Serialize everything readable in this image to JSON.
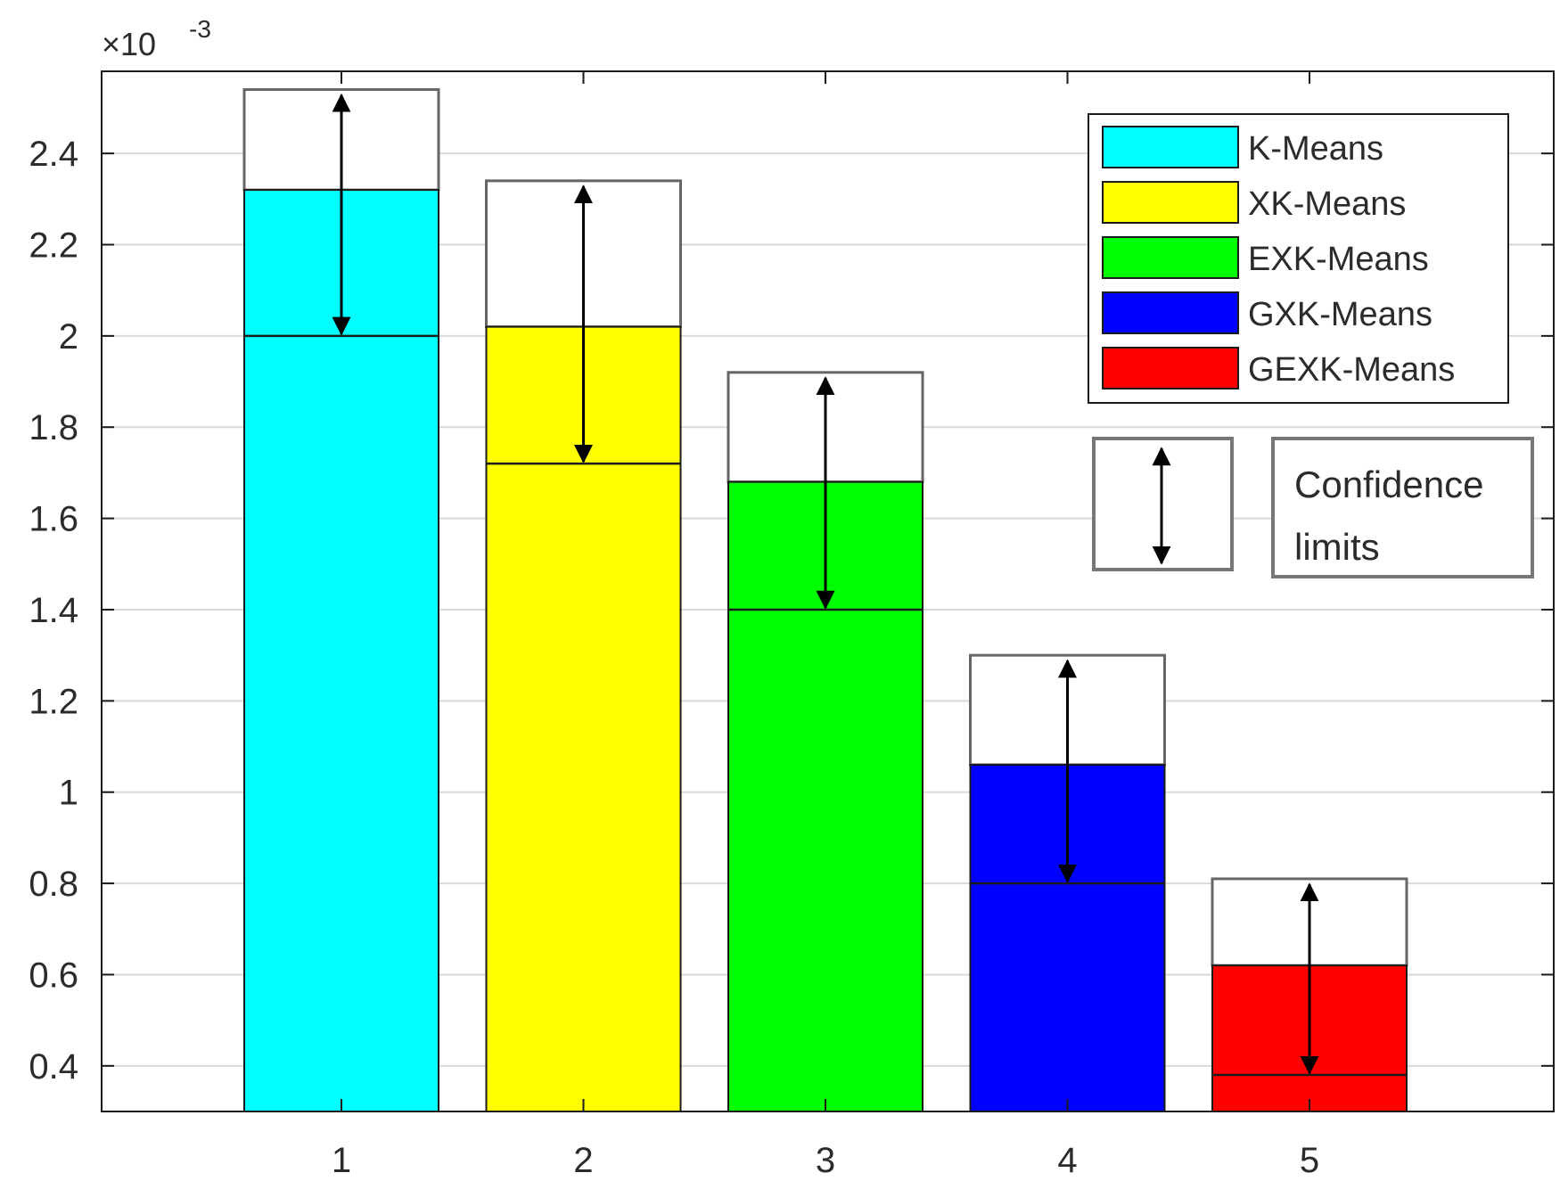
{
  "chart_data": {
    "type": "bar",
    "title": "",
    "xlabel": "",
    "ylabel": "",
    "y_exponent_label": "×10",
    "y_exponent_power": "-3",
    "categories": [
      "1",
      "2",
      "3",
      "4",
      "5"
    ],
    "x_tick_labels": [
      "1",
      "2",
      "3",
      "4",
      "5"
    ],
    "y_tick_labels": [
      "0.4",
      "0.6",
      "0.8",
      "1",
      "1.2",
      "1.4",
      "1.6",
      "1.8",
      "2",
      "2.2",
      "2.4"
    ],
    "y_ticks": [
      0.4,
      0.6,
      0.8,
      1.0,
      1.2,
      1.4,
      1.6,
      1.8,
      2.0,
      2.2,
      2.4
    ],
    "ylim": [
      0.3,
      2.58
    ],
    "grid": true,
    "legend_position": "top-right",
    "series": [
      {
        "name": "K-Means",
        "color": "#00ffff",
        "value": 2.32,
        "confidence_lower": 2.0,
        "confidence_upper": 2.54
      },
      {
        "name": "XK-Means",
        "color": "#ffff00",
        "value": 2.02,
        "confidence_lower": 1.72,
        "confidence_upper": 2.34
      },
      {
        "name": "EXK-Means",
        "color": "#00ff00",
        "value": 1.68,
        "confidence_lower": 1.4,
        "confidence_upper": 1.92
      },
      {
        "name": "GXK-Means",
        "color": "#0000ff",
        "value": 1.06,
        "confidence_lower": 0.8,
        "confidence_upper": 1.3
      },
      {
        "name": "GEXK-Means",
        "color": "#ff0000",
        "value": 0.62,
        "confidence_lower": 0.38,
        "confidence_upper": 0.81
      }
    ],
    "confidence_legend_label_line1": "Confidence",
    "confidence_legend_label_line2": "limits"
  }
}
